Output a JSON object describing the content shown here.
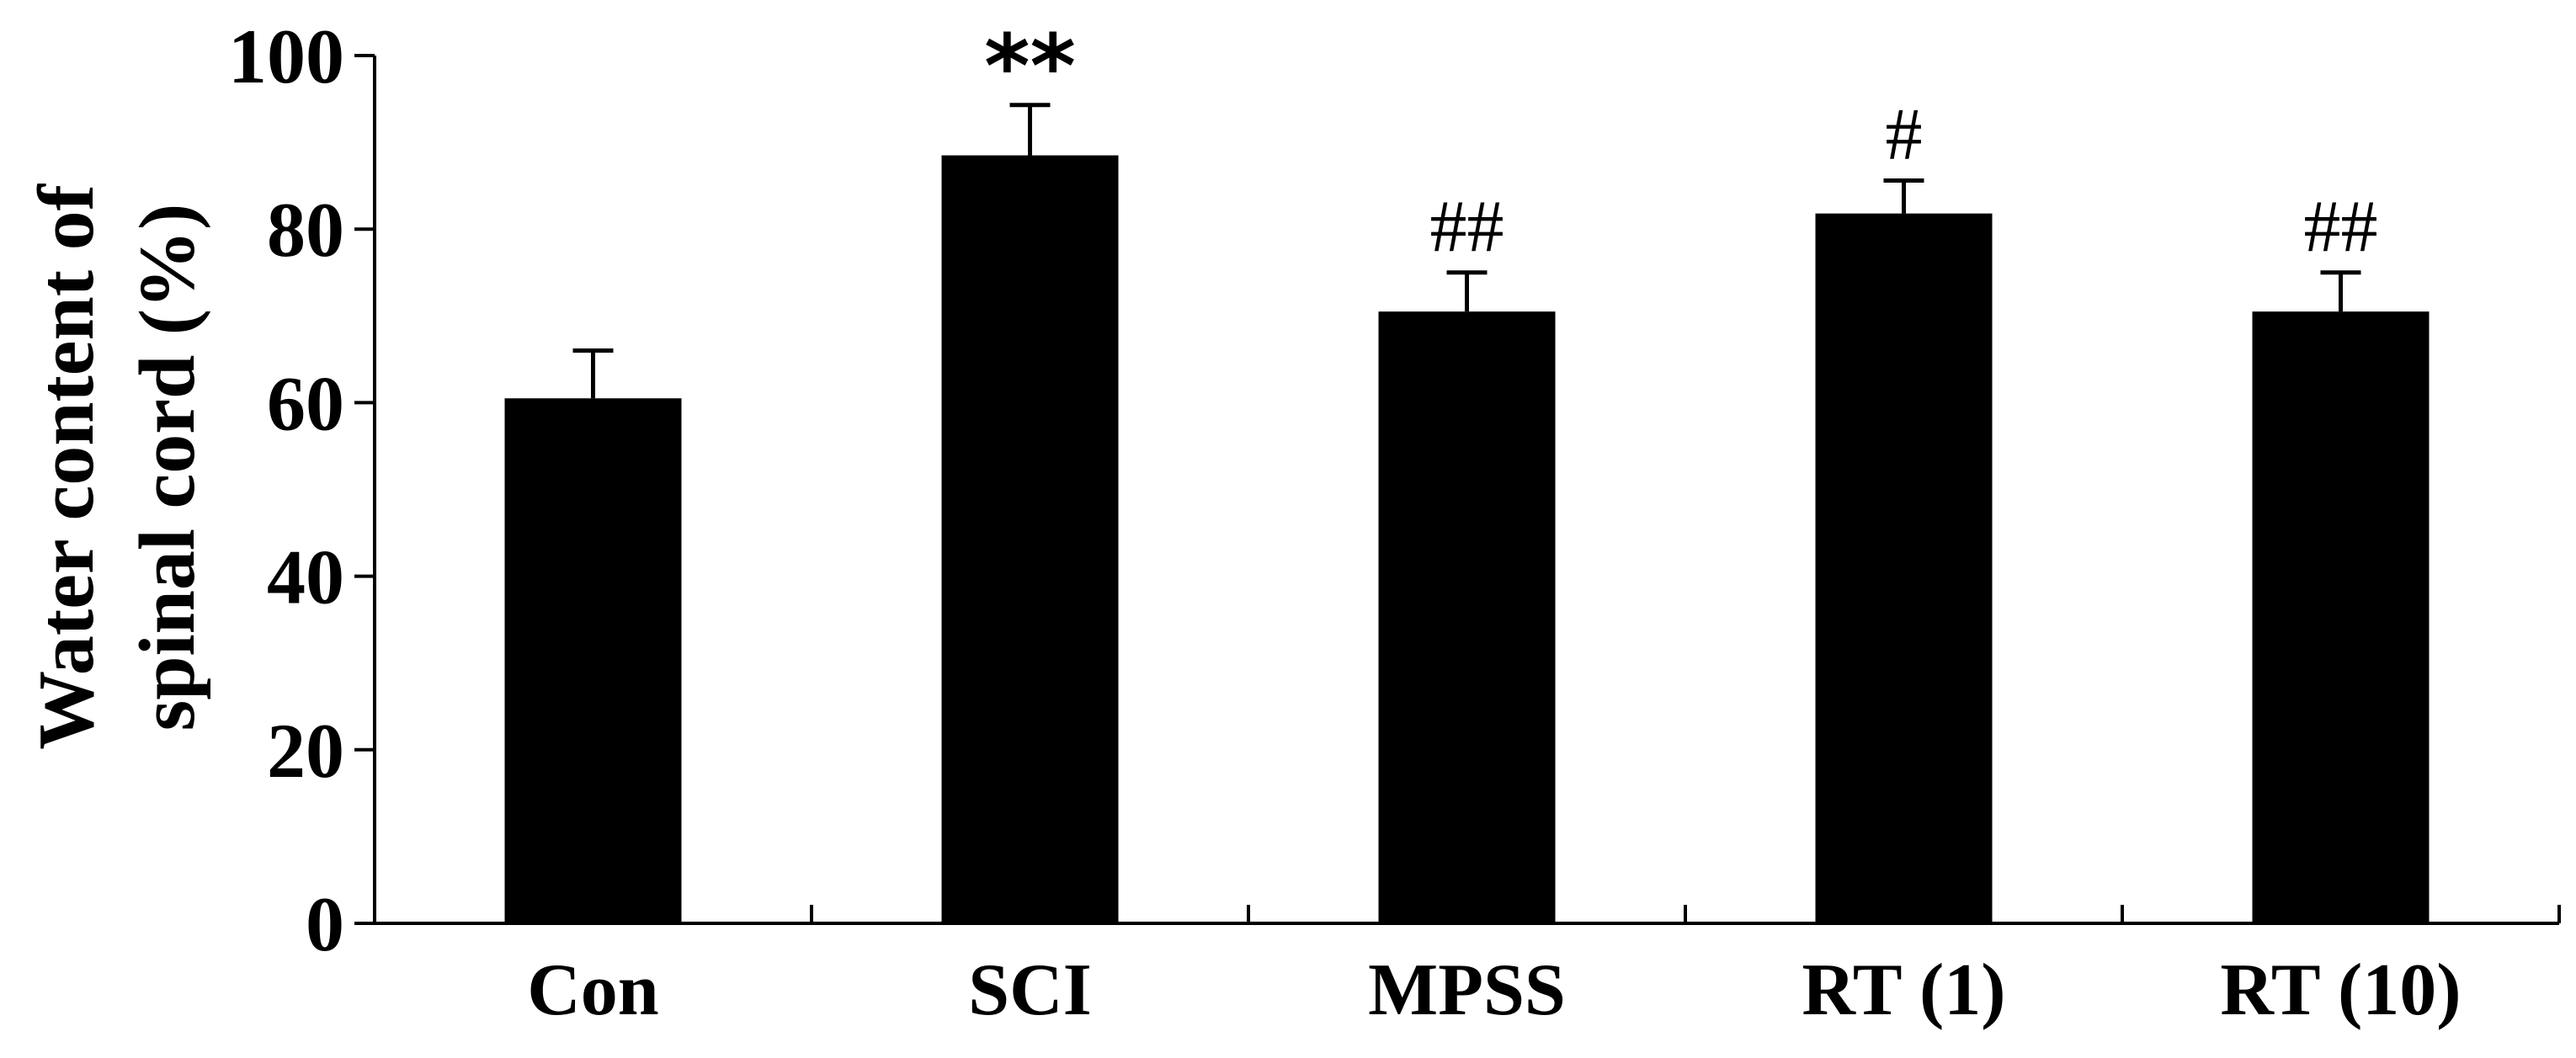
{
  "chart_data": {
    "type": "bar",
    "categories": [
      "Con",
      "SCI",
      "MPSS",
      "RT (1)",
      "RT (10)"
    ],
    "values": [
      60.5,
      88.5,
      70.5,
      81.8,
      70.5
    ],
    "errors": [
      5.5,
      5.8,
      4.5,
      3.8,
      4.5
    ],
    "annotations": [
      "",
      "**",
      "##",
      "#",
      "##"
    ],
    "title": "",
    "xlabel": "",
    "ylabel_lines": [
      "Water content of",
      "spinal cord  (%)"
    ],
    "ylim": [
      0,
      100
    ],
    "yticks": [
      0,
      20,
      40,
      60,
      80,
      100
    ],
    "bar_color": "#000000",
    "grid": false,
    "legend": "none"
  }
}
